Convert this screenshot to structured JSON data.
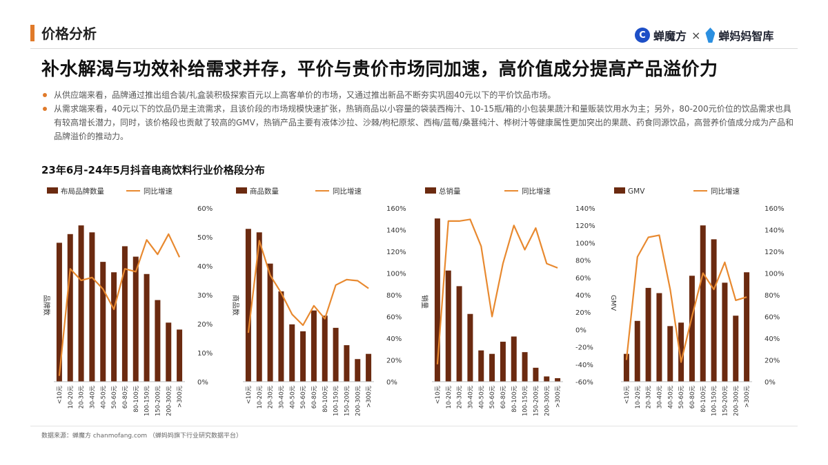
{
  "header": {
    "section_title": "价格分析",
    "logo_left": "蝉魔方",
    "logo_sep": "×",
    "logo_right": "蝉妈妈智库"
  },
  "headline": "补水解渴与功效补给需求并存，平价与贵价市场同加速，高价值成分提高产品溢价力",
  "bullets": [
    "从供应端来看，品牌通过推出组合装/礼盒装积极探索百元以上高客单价的市场，又通过推出新品不断夯实巩固40元以下的平价饮品市场。",
    "从需求端来看，40元以下的饮品仍是主流需求，且该价段的市场规模快速扩张，热销商品以小容量的袋装西梅汁、10-15瓶/箱的小包装果蔬汁和量贩装饮用水为主；另外，80-200元价位的饮品需求也具有较高增长潜力，同时，该价格段也贡献了较高的GMV，热销产品主要有液体沙拉、沙棘/枸杞原浆、西梅/蓝莓/桑葚纯汁、桦树汁等健康属性更加突出的果蔬、药食同源饮品，高营养价值成分成为产品和品牌溢价的推动力。"
  ],
  "chart_section_title": "23年6月-24年5月抖音电商饮料行业价格段分布",
  "source": "数据来源：蝉魔方 chanmofang.com （蝉妈妈旗下行业研究数据平台）",
  "colors": {
    "bar": "#6b2a10",
    "line": "#e8892f",
    "accent": "#e07a2a"
  },
  "chart_data": [
    {
      "type": "bar",
      "bar_legend": "布局品牌数量",
      "line_legend": "同比增速",
      "ylabel": "品牌数",
      "categories": [
        "<10元",
        "10-20元",
        "20-30元",
        "30-40元",
        "40-50元",
        "50-60元",
        "60-80元",
        "80-100元",
        "100-150元",
        "150-200元",
        "200-300元",
        ">300元"
      ],
      "bar_values": [
        0.8,
        0.85,
        0.9,
        0.86,
        0.69,
        0.63,
        0.78,
        0.72,
        0.62,
        0.47,
        0.34,
        0.3
      ],
      "line_values": [
        2,
        39,
        35,
        36,
        32,
        25,
        39,
        38,
        49,
        44,
        51,
        43
      ],
      "y2lim": [
        0,
        60
      ],
      "y2ticks": [
        "60%",
        "50%",
        "40%",
        "30%",
        "20%",
        "10%",
        "0%"
      ]
    },
    {
      "type": "bar",
      "bar_legend": "商品数量",
      "line_legend": "同比增速",
      "ylabel": "商品数",
      "categories": [
        "<10元",
        "10-20元",
        "20-30元",
        "30-40元",
        "40-50元",
        "50-60元",
        "60-80元",
        "80-100元",
        "100-150元",
        "150-200元",
        "200-300元",
        ">300元"
      ],
      "bar_values": [
        0.88,
        0.86,
        0.68,
        0.52,
        0.33,
        0.29,
        0.41,
        0.38,
        0.31,
        0.21,
        0.13,
        0.16
      ],
      "line_values": [
        45,
        130,
        98,
        82,
        62,
        52,
        70,
        58,
        89,
        94,
        93,
        86
      ],
      "y2lim": [
        0,
        160
      ],
      "y2ticks": [
        "160%",
        "140%",
        "120%",
        "100%",
        "80%",
        "60%",
        "40%",
        "20%",
        "0%"
      ]
    },
    {
      "type": "bar",
      "bar_legend": "总销量",
      "line_legend": "同比增速",
      "ylabel": "销量",
      "categories": [
        "<10元",
        "10-20元",
        "20-30元",
        "30-40元",
        "40-50元",
        "50-60元",
        "60-80元",
        "80-100元",
        "100-150元",
        "150-200元",
        "200-300元",
        ">300元"
      ],
      "bar_values": [
        0.94,
        0.64,
        0.55,
        0.39,
        0.18,
        0.16,
        0.23,
        0.26,
        0.17,
        0.08,
        0.03,
        0.02
      ],
      "line_values": [
        -40,
        125,
        125,
        127,
        96,
        15,
        76,
        120,
        92,
        117,
        76,
        71
      ],
      "y2lim": [
        -60,
        140
      ],
      "y2ticks": [
        "140%",
        "120%",
        "100%",
        "80%",
        "60%",
        "40%",
        "20%",
        "0%",
        "-20%",
        "-40%",
        "-60%"
      ]
    },
    {
      "type": "bar",
      "bar_legend": "GMV",
      "line_legend": "同比增速",
      "ylabel": "GMV",
      "categories": [
        "<10元",
        "10-20元",
        "20-30元",
        "30-40元",
        "40-50元",
        "50-60元",
        "60-80元",
        "80-100元",
        "100-150元",
        "150-200元",
        "200-300元",
        ">300元"
      ],
      "bar_values": [
        0.16,
        0.35,
        0.54,
        0.51,
        0.32,
        0.34,
        0.61,
        0.9,
        0.82,
        0.57,
        0.38,
        0.63
      ],
      "line_values": [
        20,
        115,
        133,
        135,
        85,
        18,
        60,
        100,
        85,
        110,
        75,
        78
      ],
      "y2lim": [
        0,
        160
      ],
      "y2ticks": [
        "160%",
        "140%",
        "120%",
        "100%",
        "80%",
        "60%",
        "40%",
        "20%",
        "0%"
      ]
    }
  ]
}
